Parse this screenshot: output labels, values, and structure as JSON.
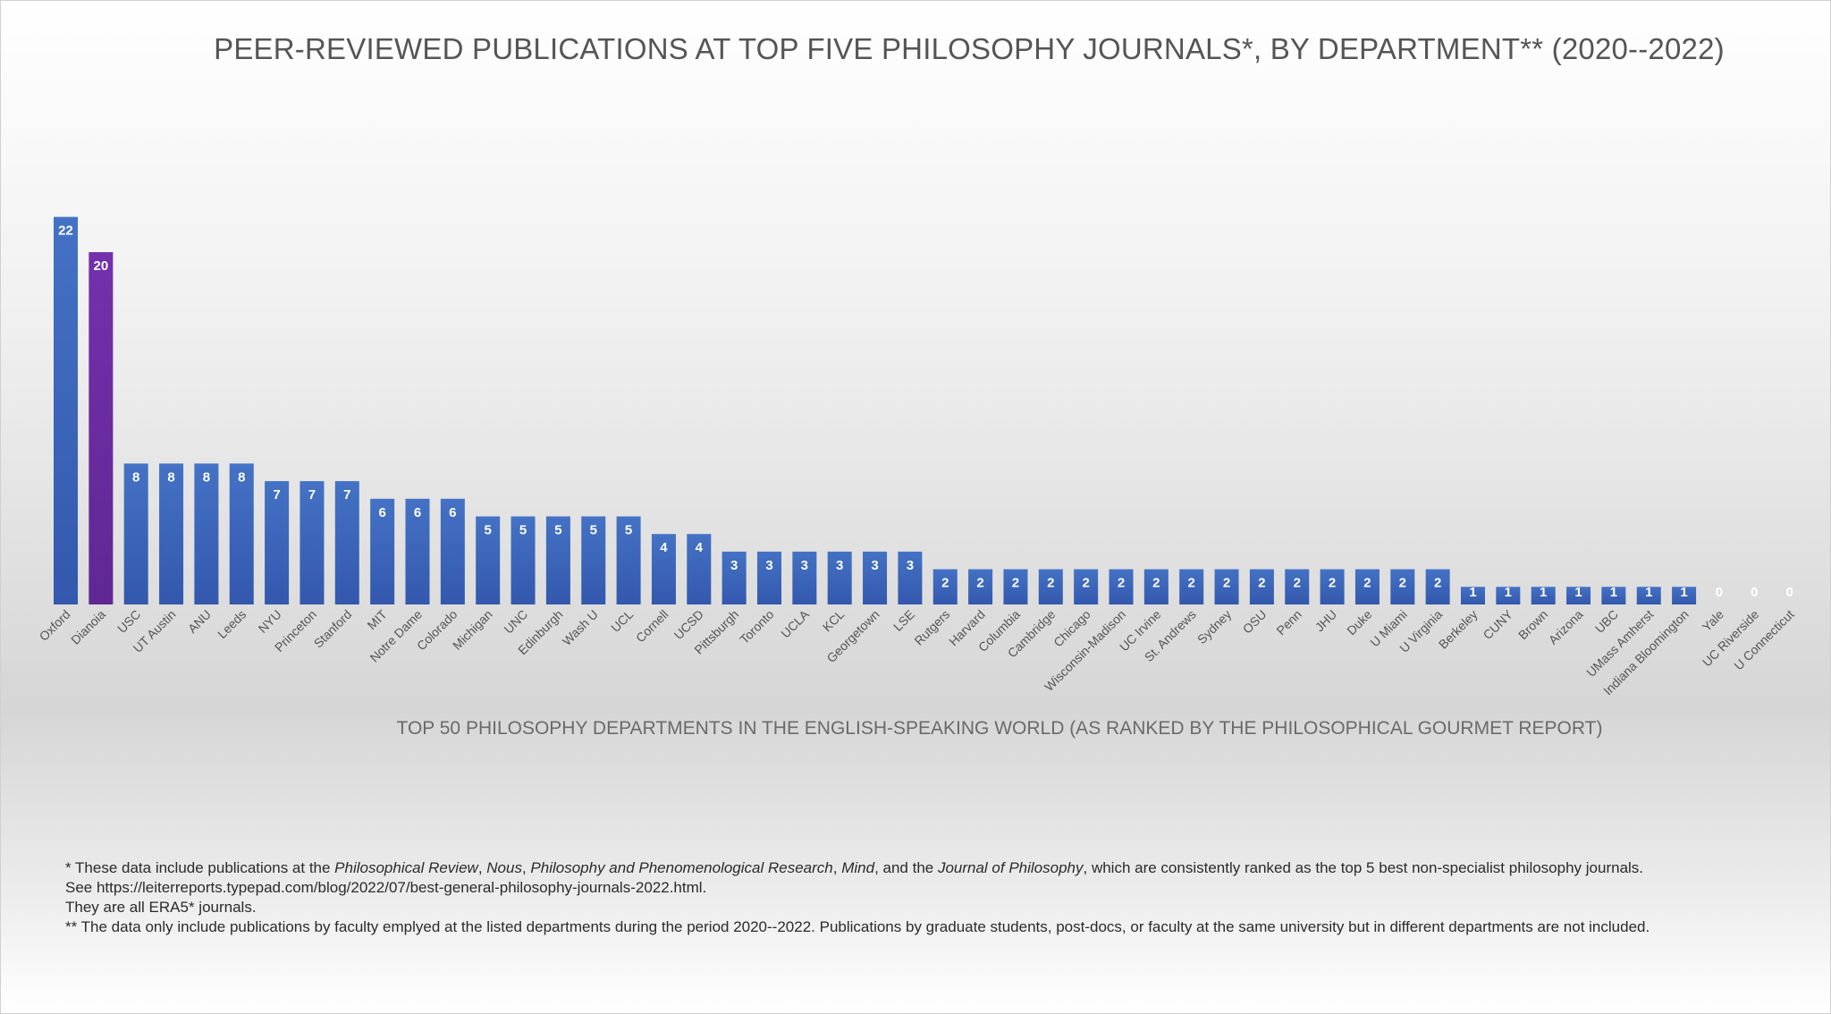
{
  "colors": {
    "bar": "#3c66c0",
    "highlight": "#6e2fa6",
    "zero_label": "#e0e0e0"
  },
  "chart_data": {
    "type": "bar",
    "title": "PEER-REVIEWED PUBLICATIONS AT TOP FIVE PHILOSOPHY JOURNALS*, BY DEPARTMENT** (2020--2022)",
    "xlabel": "TOP 50 PHILOSOPHY DEPARTMENTS IN THE ENGLISH-SPEAKING WORLD (AS RANKED BY THE PHILOSOPHICAL GOURMET REPORT)",
    "ylabel": "",
    "ylim": [
      0,
      22
    ],
    "grid": false,
    "highlight": "Dianoia",
    "categories": [
      "Oxford",
      "Dianoia",
      "USC",
      "UT Austin",
      "ANU",
      "Leeds",
      "NYU",
      "Princeton",
      "Stanford",
      "MIT",
      "Notre Dame",
      "Colorado",
      "Michigan",
      "UNC",
      "Edinburgh",
      "Wash U",
      "UCL",
      "Cornell",
      "UCSD",
      "Pittsburgh",
      "Toronto",
      "UCLA",
      "KCL",
      "Georgetown",
      "LSE",
      "Rutgers",
      "Harvard",
      "Columbia",
      "Cambridge",
      "Chicago",
      "Wisconsin-Madison",
      "UC Irvine",
      "St. Andrews",
      "Sydney",
      "OSU",
      "Penn",
      "JHU",
      "Duke",
      "U Miami",
      "U Virginia",
      "Berkeley",
      "CUNY",
      "Brown",
      "Arizona",
      "UBC",
      "UMass Amherst",
      "Indiana Bloomington",
      "Yale",
      "UC Riverside",
      "U Connecticut"
    ],
    "values": [
      22,
      20,
      8,
      8,
      8,
      8,
      7,
      7,
      7,
      6,
      6,
      6,
      5,
      5,
      5,
      5,
      5,
      4,
      4,
      3,
      3,
      3,
      3,
      3,
      3,
      2,
      2,
      2,
      2,
      2,
      2,
      2,
      2,
      2,
      2,
      2,
      2,
      2,
      2,
      2,
      1,
      1,
      1,
      1,
      1,
      1,
      1,
      0,
      0,
      0
    ]
  },
  "footnotes": {
    "line1_a": "* These data include publications at the ",
    "journal1": "Philosophical Review",
    "sep1": ", ",
    "journal2": "Nous",
    "sep2": ", ",
    "journal3": "Philosophy and Phenomenological Research",
    "sep3": ", ",
    "journal4": "Mind",
    "sep4": ", and the ",
    "journal5": "Journal of Philosophy",
    "line1_b": ", which are consistently ranked as the top 5 best non-specialist philosophy journals.",
    "line2": "See https://leiterreports.typepad.com/blog/2022/07/best-general-philosophy-journals-2022.html.",
    "line3": "They are all ERA5* journals.",
    "line4": "** The data only include publications by faculty emplyed at the listed departments during the period 2020--2022. Publications by graduate students, post-docs, or faculty at the same university but in different departments are not included."
  }
}
